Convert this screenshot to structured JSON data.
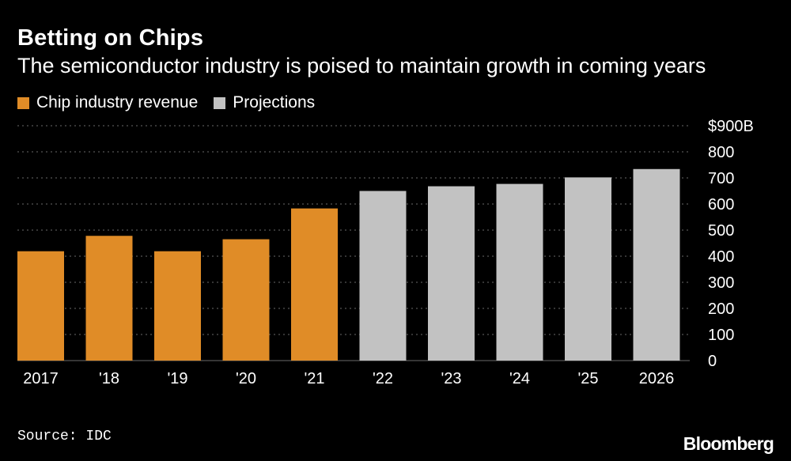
{
  "chart_data": {
    "type": "bar",
    "title": "Betting on Chips",
    "subtitle": "The semiconductor industry is poised to maintain growth in coming years",
    "categories": [
      "2017",
      "'18",
      "'19",
      "'20",
      "'21",
      "'22",
      "'23",
      "'24",
      "'25",
      "2026"
    ],
    "values": [
      419,
      478,
      419,
      465,
      583,
      650,
      668,
      677,
      702,
      734
    ],
    "series_by_bar": [
      "actual",
      "actual",
      "actual",
      "actual",
      "actual",
      "projection",
      "projection",
      "projection",
      "projection",
      "projection"
    ],
    "legend": [
      {
        "key": "actual",
        "label": "Chip industry revenue",
        "color": "#E08C27"
      },
      {
        "key": "projection",
        "label": "Projections",
        "color": "#C2C2C2"
      }
    ],
    "y_ticks": [
      "0",
      "100",
      "200",
      "300",
      "400",
      "500",
      "600",
      "700",
      "800",
      "$900B"
    ],
    "ylim": [
      0,
      900
    ],
    "xlabel": "",
    "ylabel": "",
    "grid": true,
    "legend_position": "top-left"
  },
  "footer": {
    "source": "Source: IDC",
    "brand": "Bloomberg"
  },
  "colors": {
    "background": "#000000",
    "gridline": "#6A6A6A"
  }
}
